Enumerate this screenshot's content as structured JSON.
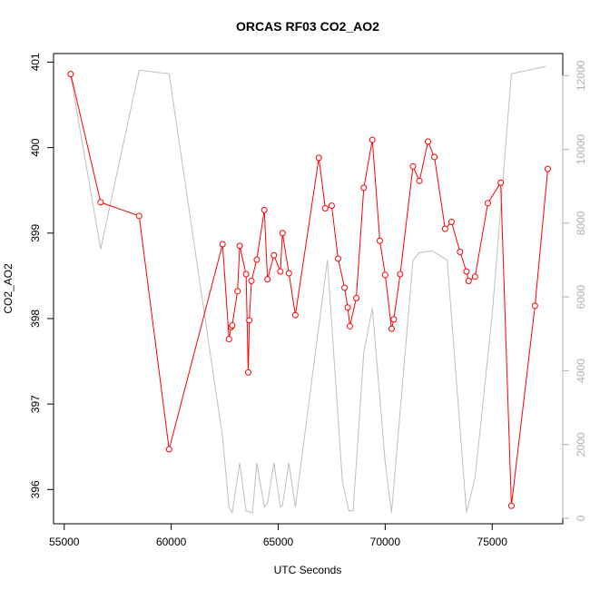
{
  "chart_data": {
    "type": "line",
    "title": "ORCAS RF03 CO2_AO2",
    "xlabel": "UTC Seconds",
    "ylabel": "CO2_AO2",
    "xlim": [
      54500,
      78300
    ],
    "ylim": [
      395.6,
      401.1
    ],
    "y2lim": [
      -150,
      12600
    ],
    "x_ticks": [
      55000,
      60000,
      65000,
      70000,
      75000
    ],
    "y_ticks": [
      396,
      397,
      398,
      399,
      400,
      401
    ],
    "y2_ticks": [
      0,
      2000,
      4000,
      6000,
      8000,
      10000,
      12000
    ],
    "grid": false,
    "series": [
      {
        "role": "primary",
        "color": "#ff0000",
        "markers": true,
        "x": [
          55300,
          56700,
          58500,
          59900,
          62400,
          62700,
          62800,
          62850,
          63100,
          63200,
          63500,
          63600,
          63650,
          63750,
          64000,
          64350,
          64500,
          64800,
          65100,
          65200,
          65500,
          65800,
          66900,
          67200,
          67500,
          67800,
          68100,
          68250,
          68350,
          68650,
          69000,
          69400,
          69750,
          70000,
          70300,
          70400,
          70700,
          71300,
          71600,
          72000,
          72300,
          72800,
          73100,
          73500,
          73800,
          73900,
          74200,
          74800,
          75400,
          75900,
          77000,
          77600
        ],
        "y": [
          400.86,
          399.36,
          399.2,
          396.47,
          398.87,
          397.76,
          397.9,
          397.92,
          398.32,
          398.85,
          398.52,
          397.37,
          397.98,
          398.44,
          398.69,
          399.27,
          398.46,
          398.74,
          398.55,
          399.0,
          398.53,
          398.04,
          399.88,
          399.29,
          399.32,
          398.7,
          398.36,
          398.13,
          397.91,
          398.24,
          399.53,
          400.09,
          398.91,
          398.51,
          397.88,
          397.99,
          398.52,
          399.78,
          399.61,
          400.07,
          399.89,
          399.05,
          399.13,
          398.78,
          398.55,
          398.44,
          398.49,
          399.35,
          399.59,
          395.81,
          398.15,
          399.75
        ]
      },
      {
        "role": "secondary",
        "color": "#bebebe",
        "markers": false,
        "x": [
          55300,
          56700,
          58500,
          59900,
          62400,
          62700,
          62850,
          63200,
          63500,
          63800,
          64000,
          64350,
          64500,
          64800,
          65100,
          65200,
          65500,
          65800,
          67300,
          68000,
          68300,
          68500,
          69000,
          69400,
          70000,
          70300,
          71300,
          71600,
          72200,
          72900,
          73800,
          74200,
          75000,
          75900,
          77500
        ],
        "y": [
          12000,
          7300,
          12150,
          12050,
          2200,
          300,
          150,
          1500,
          200,
          150,
          1500,
          300,
          400,
          1500,
          300,
          350,
          1500,
          300,
          7000,
          1000,
          200,
          200,
          4500,
          5700,
          1500,
          150,
          7000,
          7200,
          7250,
          7000,
          150,
          1100,
          5500,
          12050,
          12250
        ]
      }
    ]
  }
}
